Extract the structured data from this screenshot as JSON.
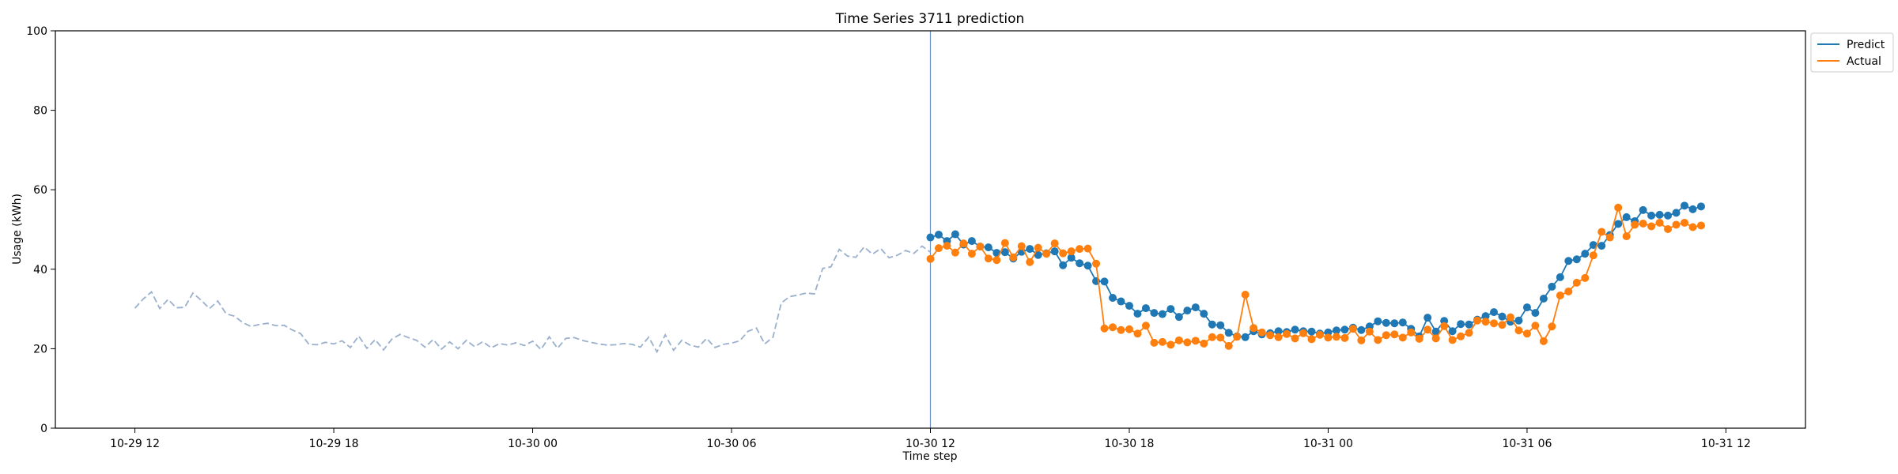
{
  "chart_data": {
    "type": "line",
    "title": "Time Series 3711 prediction",
    "xlabel": "Time step",
    "ylabel": "Usage (kWh)",
    "ylim": [
      0,
      100
    ],
    "yticks": [
      0,
      20,
      40,
      60,
      80,
      100
    ],
    "xlim_hours": [
      -2.4,
      50.4
    ],
    "xticks": [
      {
        "label": "10-29 12",
        "hour": 0
      },
      {
        "label": "10-29 18",
        "hour": 6
      },
      {
        "label": "10-30 00",
        "hour": 12
      },
      {
        "label": "10-30 06",
        "hour": 18
      },
      {
        "label": "10-30 12",
        "hour": 24
      },
      {
        "label": "10-30 18",
        "hour": 30
      },
      {
        "label": "10-31 00",
        "hour": 36
      },
      {
        "label": "10-31 06",
        "hour": 42
      },
      {
        "label": "10-31 12",
        "hour": 48
      }
    ],
    "x_start": "10-29 12:00",
    "x_step": "15 min",
    "prediction_start": "10-30 12:00",
    "grid": false,
    "legend_position": "top-right",
    "history": {
      "color": "#9ab0cc",
      "style": "dashed",
      "values": [
        30.2,
        32.5,
        34.3,
        30.1,
        32.4,
        30.3,
        30.4,
        34.0,
        32.2,
        30.1,
        32.0,
        28.8,
        28.2,
        26.6,
        25.6,
        26.1,
        26.4,
        25.8,
        25.9,
        24.7,
        23.8,
        21.1,
        21.0,
        21.6,
        21.2,
        22.0,
        20.3,
        23.2,
        20.1,
        22.3,
        19.7,
        22.4,
        23.6,
        22.8,
        22.1,
        20.4,
        22.3,
        19.9,
        21.7,
        20.0,
        22.1,
        20.5,
        21.8,
        20.2,
        21.3,
        20.9,
        21.5,
        20.8,
        21.9,
        19.8,
        23.0,
        20.1,
        22.6,
        22.8,
        22.1,
        21.6,
        21.2,
        20.9,
        21.0,
        21.3,
        21.1,
        20.4,
        22.9,
        19.2,
        23.5,
        19.6,
        22.1,
        20.9,
        20.4,
        22.6,
        20.3,
        21.1,
        21.4,
        22.0,
        24.4,
        25.2,
        21.2,
        22.9,
        31.5,
        33.1,
        33.5,
        34.0,
        33.8,
        40.2,
        40.6,
        45.0,
        43.3,
        43.0,
        45.6,
        43.8,
        45.2,
        42.9,
        43.5,
        44.7,
        44.0,
        45.8,
        44.3
      ]
    },
    "series": [
      {
        "name": "Predict",
        "color": "#1f77b4",
        "values": [
          48.0,
          48.7,
          47.1,
          48.8,
          46.2,
          47.1,
          45.7,
          45.5,
          44.1,
          44.3,
          42.7,
          44.4,
          45.1,
          43.6,
          44.0,
          44.5,
          41.0,
          42.9,
          41.5,
          40.9,
          37.0,
          36.9,
          32.8,
          31.9,
          30.8,
          28.8,
          30.2,
          29.0,
          28.7,
          30.0,
          28.0,
          29.6,
          30.4,
          28.8,
          26.1,
          25.9,
          24.0,
          23.1,
          22.9,
          24.4,
          23.6,
          23.9,
          24.4,
          24.2,
          24.8,
          24.4,
          24.3,
          23.8,
          24.1,
          24.6,
          24.8,
          25.3,
          24.7,
          25.6,
          26.9,
          26.5,
          26.4,
          26.6,
          25.0,
          23.1,
          27.8,
          24.3,
          27.0,
          24.4,
          26.2,
          26.1,
          27.3,
          28.2,
          29.2,
          28.1,
          26.8,
          27.1,
          30.4,
          29.0,
          32.6,
          35.6,
          38.0,
          42.1,
          42.5,
          43.9,
          46.1,
          45.9,
          48.6,
          51.4,
          53.1,
          52.1,
          54.9,
          53.5,
          53.7,
          53.5,
          54.2,
          56.0,
          55.1,
          55.8
        ]
      },
      {
        "name": "Actual",
        "color": "#ff7f0e",
        "values": [
          42.6,
          45.3,
          45.9,
          44.2,
          46.5,
          43.9,
          45.7,
          42.7,
          42.3,
          46.6,
          43.0,
          45.8,
          41.8,
          45.4,
          43.9,
          46.5,
          44.0,
          44.5,
          45.1,
          45.2,
          41.4,
          25.1,
          25.4,
          24.7,
          24.9,
          23.8,
          25.8,
          21.5,
          21.7,
          21.0,
          22.1,
          21.6,
          22.0,
          21.3,
          22.9,
          22.8,
          20.7,
          23.0,
          33.6,
          25.2,
          24.1,
          23.4,
          22.9,
          23.7,
          22.6,
          23.9,
          22.4,
          23.5,
          22.8,
          23.0,
          22.7,
          25.0,
          22.1,
          24.3,
          22.2,
          23.4,
          23.6,
          22.8,
          24.1,
          22.5,
          24.8,
          22.6,
          25.7,
          22.2,
          23.1,
          24.0,
          27.1,
          26.8,
          26.4,
          26.0,
          27.9,
          24.6,
          23.8,
          25.8,
          21.9,
          25.6,
          33.4,
          34.4,
          36.6,
          37.8,
          43.5,
          49.4,
          48.0,
          55.5,
          48.3,
          51.2,
          51.5,
          50.8,
          51.7,
          50.1,
          51.2,
          51.7,
          50.6,
          51.0
        ]
      }
    ]
  }
}
